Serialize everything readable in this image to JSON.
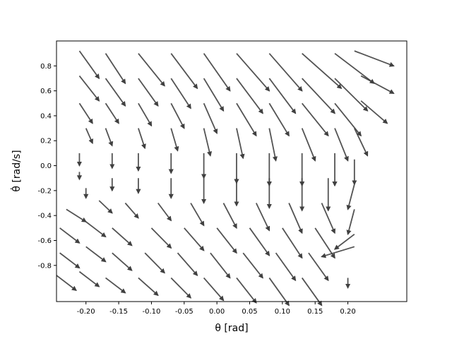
{
  "chart_data": {
    "type": "quiver",
    "title": "",
    "xlabel": "θ [rad]",
    "ylabel": "θ̇ [rad/s]",
    "xlim": [
      -0.245,
      0.29
    ],
    "ylim": [
      -1.09,
      1.0
    ],
    "xticks": [
      "-0.20",
      "-0.15",
      "-0.10",
      "-0.05",
      "0.00",
      "0.05",
      "0.10",
      "0.15",
      "0.20"
    ],
    "xtick_values": [
      -0.2,
      -0.15,
      -0.1,
      -0.05,
      0.0,
      0.05,
      0.1,
      0.15,
      0.2
    ],
    "yticks": [
      "-0.8",
      "-0.6",
      "-0.4",
      "-0.2",
      "0.0",
      "0.2",
      "0.4",
      "0.6",
      "0.8"
    ],
    "ytick_values": [
      -0.8,
      -0.6,
      -0.4,
      -0.2,
      0.0,
      0.2,
      0.4,
      0.6,
      0.8
    ],
    "grid": false,
    "arrow_color": "#404040",
    "field": {
      "theta_range": [
        -0.21,
        0.21
      ],
      "theta_dot_range": [
        -0.9,
        0.9
      ],
      "rows": 21,
      "cols": 18,
      "description_note": ""
    },
    "vectors": [
      {
        "x": -0.21,
        "y": 0.92,
        "dx": 0.03,
        "dy": -0.22
      },
      {
        "x": -0.21,
        "y": 0.72,
        "dx": 0.03,
        "dy": -0.2
      },
      {
        "x": -0.21,
        "y": 0.5,
        "dx": 0.02,
        "dy": -0.16
      },
      {
        "x": -0.2,
        "y": 0.3,
        "dx": 0.01,
        "dy": -0.12
      },
      {
        "x": -0.21,
        "y": 0.1,
        "dx": 0.0,
        "dy": -0.1
      },
      {
        "x": -0.21,
        "y": -0.05,
        "dx": 0.0,
        "dy": -0.06
      },
      {
        "x": -0.2,
        "y": -0.18,
        "dx": 0.0,
        "dy": -0.08
      },
      {
        "x": -0.23,
        "y": -0.35,
        "dx": 0.03,
        "dy": -0.1
      },
      {
        "x": -0.24,
        "y": -0.5,
        "dx": 0.03,
        "dy": -0.12
      },
      {
        "x": -0.24,
        "y": -0.7,
        "dx": 0.03,
        "dy": -0.12
      },
      {
        "x": -0.245,
        "y": -0.88,
        "dx": 0.03,
        "dy": -0.12
      },
      {
        "x": -0.17,
        "y": 0.9,
        "dx": 0.03,
        "dy": -0.24
      },
      {
        "x": -0.17,
        "y": 0.7,
        "dx": 0.03,
        "dy": -0.22
      },
      {
        "x": -0.17,
        "y": 0.5,
        "dx": 0.02,
        "dy": -0.16
      },
      {
        "x": -0.17,
        "y": 0.3,
        "dx": 0.01,
        "dy": -0.14
      },
      {
        "x": -0.16,
        "y": 0.1,
        "dx": 0.0,
        "dy": -0.12
      },
      {
        "x": -0.16,
        "y": -0.1,
        "dx": 0.0,
        "dy": -0.1
      },
      {
        "x": -0.18,
        "y": -0.28,
        "dx": 0.02,
        "dy": -0.1
      },
      {
        "x": -0.2,
        "y": -0.45,
        "dx": 0.03,
        "dy": -0.12
      },
      {
        "x": -0.2,
        "y": -0.65,
        "dx": 0.03,
        "dy": -0.12
      },
      {
        "x": -0.21,
        "y": -0.85,
        "dx": 0.03,
        "dy": -0.12
      },
      {
        "x": -0.12,
        "y": 0.9,
        "dx": 0.04,
        "dy": -0.26
      },
      {
        "x": -0.12,
        "y": 0.7,
        "dx": 0.03,
        "dy": -0.22
      },
      {
        "x": -0.12,
        "y": 0.5,
        "dx": 0.02,
        "dy": -0.18
      },
      {
        "x": -0.12,
        "y": 0.3,
        "dx": 0.01,
        "dy": -0.16
      },
      {
        "x": -0.12,
        "y": 0.1,
        "dx": 0.0,
        "dy": -0.14
      },
      {
        "x": -0.12,
        "y": -0.1,
        "dx": 0.0,
        "dy": -0.12
      },
      {
        "x": -0.14,
        "y": -0.3,
        "dx": 0.02,
        "dy": -0.12
      },
      {
        "x": -0.16,
        "y": -0.5,
        "dx": 0.03,
        "dy": -0.14
      },
      {
        "x": -0.16,
        "y": -0.7,
        "dx": 0.03,
        "dy": -0.14
      },
      {
        "x": -0.17,
        "y": -0.9,
        "dx": 0.03,
        "dy": -0.12
      },
      {
        "x": -0.07,
        "y": 0.9,
        "dx": 0.04,
        "dy": -0.28
      },
      {
        "x": -0.07,
        "y": 0.7,
        "dx": 0.03,
        "dy": -0.24
      },
      {
        "x": -0.07,
        "y": 0.5,
        "dx": 0.02,
        "dy": -0.2
      },
      {
        "x": -0.07,
        "y": 0.3,
        "dx": 0.01,
        "dy": -0.18
      },
      {
        "x": -0.07,
        "y": 0.1,
        "dx": 0.0,
        "dy": -0.16
      },
      {
        "x": -0.07,
        "y": -0.1,
        "dx": 0.0,
        "dy": -0.16
      },
      {
        "x": -0.09,
        "y": -0.3,
        "dx": 0.02,
        "dy": -0.14
      },
      {
        "x": -0.1,
        "y": -0.5,
        "dx": 0.03,
        "dy": -0.16
      },
      {
        "x": -0.11,
        "y": -0.7,
        "dx": 0.03,
        "dy": -0.16
      },
      {
        "x": -0.12,
        "y": -0.9,
        "dx": 0.03,
        "dy": -0.14
      },
      {
        "x": -0.02,
        "y": 0.9,
        "dx": 0.04,
        "dy": -0.3
      },
      {
        "x": -0.02,
        "y": 0.7,
        "dx": 0.03,
        "dy": -0.26
      },
      {
        "x": -0.02,
        "y": 0.5,
        "dx": 0.02,
        "dy": -0.24
      },
      {
        "x": -0.02,
        "y": 0.3,
        "dx": 0.01,
        "dy": -0.22
      },
      {
        "x": -0.02,
        "y": 0.1,
        "dx": 0.0,
        "dy": -0.2
      },
      {
        "x": -0.02,
        "y": -0.1,
        "dx": 0.0,
        "dy": -0.2
      },
      {
        "x": -0.04,
        "y": -0.3,
        "dx": 0.02,
        "dy": -0.18
      },
      {
        "x": -0.05,
        "y": -0.5,
        "dx": 0.03,
        "dy": -0.18
      },
      {
        "x": -0.06,
        "y": -0.7,
        "dx": 0.03,
        "dy": -0.18
      },
      {
        "x": -0.07,
        "y": -0.9,
        "dx": 0.03,
        "dy": -0.16
      },
      {
        "x": 0.03,
        "y": 0.9,
        "dx": 0.05,
        "dy": -0.3
      },
      {
        "x": 0.03,
        "y": 0.7,
        "dx": 0.04,
        "dy": -0.28
      },
      {
        "x": 0.03,
        "y": 0.5,
        "dx": 0.03,
        "dy": -0.26
      },
      {
        "x": 0.03,
        "y": 0.3,
        "dx": 0.01,
        "dy": -0.24
      },
      {
        "x": 0.03,
        "y": 0.1,
        "dx": 0.0,
        "dy": -0.24
      },
      {
        "x": 0.03,
        "y": -0.1,
        "dx": 0.0,
        "dy": -0.22
      },
      {
        "x": 0.01,
        "y": -0.3,
        "dx": 0.02,
        "dy": -0.2
      },
      {
        "x": 0.0,
        "y": -0.5,
        "dx": 0.03,
        "dy": -0.2
      },
      {
        "x": -0.01,
        "y": -0.7,
        "dx": 0.03,
        "dy": -0.2
      },
      {
        "x": -0.02,
        "y": -0.9,
        "dx": 0.03,
        "dy": -0.18
      },
      {
        "x": 0.08,
        "y": 0.9,
        "dx": 0.05,
        "dy": -0.3
      },
      {
        "x": 0.08,
        "y": 0.7,
        "dx": 0.04,
        "dy": -0.28
      },
      {
        "x": 0.08,
        "y": 0.5,
        "dx": 0.03,
        "dy": -0.26
      },
      {
        "x": 0.08,
        "y": 0.3,
        "dx": 0.01,
        "dy": -0.26
      },
      {
        "x": 0.08,
        "y": 0.1,
        "dx": 0.0,
        "dy": -0.26
      },
      {
        "x": 0.08,
        "y": -0.1,
        "dx": 0.0,
        "dy": -0.24
      },
      {
        "x": 0.06,
        "y": -0.3,
        "dx": 0.02,
        "dy": -0.22
      },
      {
        "x": 0.05,
        "y": -0.5,
        "dx": 0.03,
        "dy": -0.22
      },
      {
        "x": 0.04,
        "y": -0.7,
        "dx": 0.03,
        "dy": -0.2
      },
      {
        "x": 0.03,
        "y": -0.9,
        "dx": 0.03,
        "dy": -0.2
      },
      {
        "x": 0.13,
        "y": 0.9,
        "dx": 0.06,
        "dy": -0.28
      },
      {
        "x": 0.13,
        "y": 0.7,
        "dx": 0.05,
        "dy": -0.28
      },
      {
        "x": 0.13,
        "y": 0.5,
        "dx": 0.04,
        "dy": -0.26
      },
      {
        "x": 0.13,
        "y": 0.3,
        "dx": 0.02,
        "dy": -0.26
      },
      {
        "x": 0.13,
        "y": 0.1,
        "dx": 0.0,
        "dy": -0.26
      },
      {
        "x": 0.13,
        "y": -0.1,
        "dx": 0.0,
        "dy": -0.26
      },
      {
        "x": 0.11,
        "y": -0.3,
        "dx": 0.02,
        "dy": -0.24
      },
      {
        "x": 0.1,
        "y": -0.5,
        "dx": 0.03,
        "dy": -0.24
      },
      {
        "x": 0.09,
        "y": -0.7,
        "dx": 0.03,
        "dy": -0.22
      },
      {
        "x": 0.08,
        "y": -0.9,
        "dx": 0.03,
        "dy": -0.22
      },
      {
        "x": 0.18,
        "y": 0.9,
        "dx": 0.06,
        "dy": -0.24
      },
      {
        "x": 0.18,
        "y": 0.7,
        "dx": 0.05,
        "dy": -0.26
      },
      {
        "x": 0.18,
        "y": 0.5,
        "dx": 0.04,
        "dy": -0.26
      },
      {
        "x": 0.18,
        "y": 0.3,
        "dx": 0.02,
        "dy": -0.26
      },
      {
        "x": 0.18,
        "y": 0.1,
        "dx": 0.0,
        "dy": -0.26
      },
      {
        "x": 0.17,
        "y": -0.1,
        "dx": 0.0,
        "dy": -0.26
      },
      {
        "x": 0.16,
        "y": -0.3,
        "dx": 0.02,
        "dy": -0.24
      },
      {
        "x": 0.15,
        "y": -0.5,
        "dx": 0.03,
        "dy": -0.24
      },
      {
        "x": 0.14,
        "y": -0.7,
        "dx": 0.03,
        "dy": -0.22
      },
      {
        "x": 0.13,
        "y": -0.9,
        "dx": 0.03,
        "dy": -0.22
      },
      {
        "x": 0.21,
        "y": 0.92,
        "dx": 0.06,
        "dy": -0.12
      },
      {
        "x": 0.22,
        "y": 0.72,
        "dx": 0.05,
        "dy": -0.14
      },
      {
        "x": 0.22,
        "y": 0.52,
        "dx": 0.04,
        "dy": -0.18
      },
      {
        "x": 0.21,
        "y": 0.3,
        "dx": 0.02,
        "dy": -0.22
      },
      {
        "x": 0.21,
        "y": 0.05,
        "dx": 0.0,
        "dy": -0.2
      },
      {
        "x": 0.21,
        "y": -0.15,
        "dx": -0.01,
        "dy": -0.2
      },
      {
        "x": 0.21,
        "y": -0.35,
        "dx": -0.01,
        "dy": -0.2
      },
      {
        "x": 0.21,
        "y": -0.55,
        "dx": -0.03,
        "dy": -0.12
      },
      {
        "x": 0.21,
        "y": -0.65,
        "dx": -0.05,
        "dy": -0.08
      },
      {
        "x": 0.2,
        "y": -0.9,
        "dx": 0.0,
        "dy": -0.08
      }
    ]
  }
}
